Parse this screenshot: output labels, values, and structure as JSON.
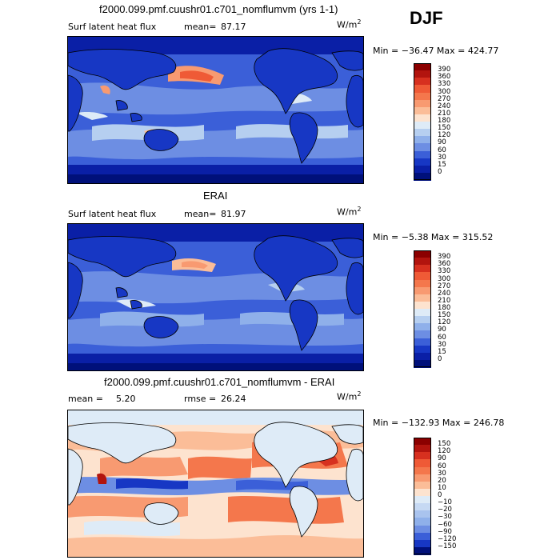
{
  "season": "DJF",
  "panels": [
    {
      "title": "f2000.099.pmf.cuushr01.c701_nomflumvm (yrs 1-1)",
      "left_label": "Surf latent heat flux",
      "stat_label": "mean=",
      "stat_value": "87.17",
      "units": "W/m",
      "units_sup": "2",
      "minmax": "Min = −36.47 Max = 424.77"
    },
    {
      "title": "ERAI",
      "left_label": "Surf latent heat flux",
      "stat_label": "mean=",
      "stat_value": "81.97",
      "units": "W/m",
      "units_sup": "2",
      "minmax": "Min = −5.38 Max = 315.52"
    },
    {
      "title": "f2000.099.pmf.cuushr01.c701_nomflumvm - ERAI",
      "left_label": "mean =",
      "stat_label": "5.20",
      "rmse_label": "rmse =",
      "rmse_value": "26.24",
      "units": "W/m",
      "units_sup": "2",
      "minmax": "Min = −132.93 Max = 246.78"
    }
  ],
  "chart_data": [
    {
      "type": "heatmap",
      "title": "f2000.099.pmf.cuushr01.c701_nomflumvm (yrs 1-1)",
      "variable": "Surf latent heat flux",
      "units": "W/m2",
      "mean": 87.17,
      "min": -36.47,
      "max": 424.77,
      "colorbar_levels": [
        "390",
        "360",
        "330",
        "300",
        "270",
        "240",
        "210",
        "180",
        "150",
        "120",
        "90",
        "60",
        "30",
        "15",
        "0"
      ],
      "colors": [
        "#8b0000",
        "#b2140e",
        "#d7301f",
        "#ef5a36",
        "#f4774c",
        "#f89a71",
        "#fbbd98",
        "#fde3cf",
        "#deebf7",
        "#b6cff0",
        "#8fb0ea",
        "#6d8ee3",
        "#3b5fd8",
        "#1737c4",
        "#0a1fa6",
        "#00107a"
      ]
    },
    {
      "type": "heatmap",
      "title": "ERAI",
      "variable": "Surf latent heat flux",
      "units": "W/m2",
      "mean": 81.97,
      "min": -5.38,
      "max": 315.52,
      "colorbar_levels": [
        "390",
        "360",
        "330",
        "300",
        "270",
        "240",
        "210",
        "180",
        "150",
        "120",
        "90",
        "60",
        "30",
        "15",
        "0"
      ],
      "colors": [
        "#8b0000",
        "#b2140e",
        "#d7301f",
        "#ef5a36",
        "#f4774c",
        "#f89a71",
        "#fbbd98",
        "#fde3cf",
        "#deebf7",
        "#b6cff0",
        "#8fb0ea",
        "#6d8ee3",
        "#3b5fd8",
        "#1737c4",
        "#0a1fa6",
        "#00107a"
      ]
    },
    {
      "type": "heatmap",
      "title": "f2000.099.pmf.cuushr01.c701_nomflumvm - ERAI",
      "units": "W/m2",
      "mean": 5.2,
      "rmse": 26.24,
      "min": -132.93,
      "max": 246.78,
      "colorbar_levels": [
        "150",
        "120",
        "90",
        "60",
        "30",
        "20",
        "10",
        "0",
        "−10",
        "−20",
        "−30",
        "−60",
        "−90",
        "−120",
        "−150"
      ],
      "colors": [
        "#8b0000",
        "#b2140e",
        "#d7301f",
        "#ef5a36",
        "#f4774c",
        "#f89a71",
        "#fbbd98",
        "#fde3cf",
        "#deebf7",
        "#c6d9f3",
        "#a9c3ee",
        "#8fb0ea",
        "#6d8ee3",
        "#3b5fd8",
        "#1737c4",
        "#00107a"
      ]
    }
  ]
}
